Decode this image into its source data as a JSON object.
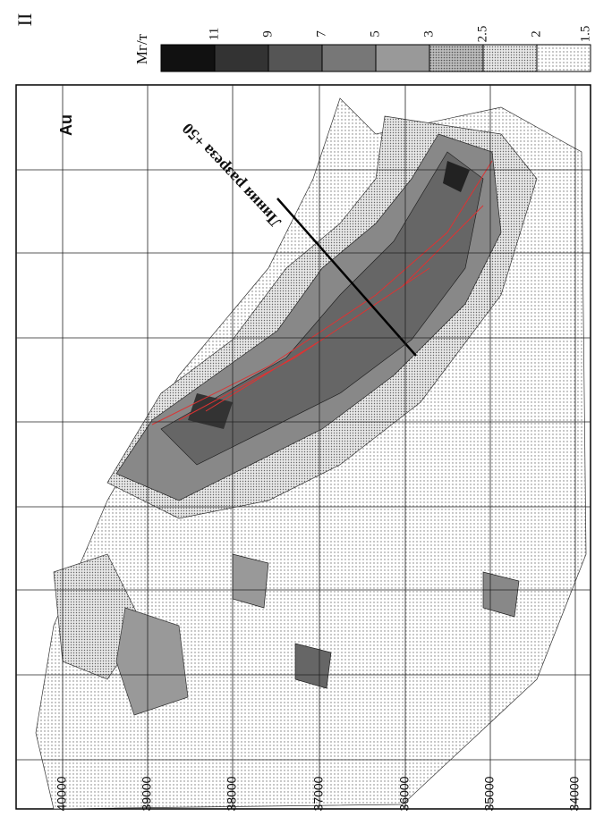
{
  "header": {
    "title": "II"
  },
  "legend": {
    "unit": "Мг/т",
    "levels": [
      "11",
      "9",
      "7",
      "5",
      "3",
      "2.5",
      "2",
      "1.5"
    ]
  },
  "map": {
    "element": "Au",
    "section_label": "Линия разреза +50",
    "axis_labels": [
      "40000",
      "39000",
      "38000",
      "37000",
      "36000",
      "35000",
      "34000"
    ]
  }
}
